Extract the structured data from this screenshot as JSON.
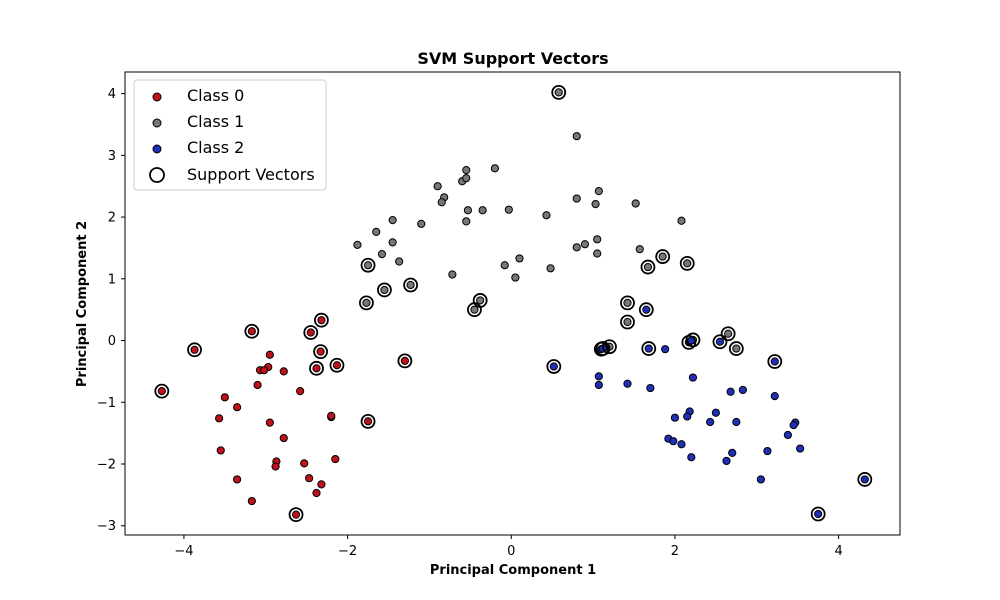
{
  "chart_data": {
    "type": "scatter",
    "title": "SVM Support Vectors",
    "xlabel": "Principal Component 1",
    "ylabel": "Principal Component 2",
    "xlim": [
      -4.72,
      4.75
    ],
    "ylim": [
      -3.15,
      4.35
    ],
    "xticks": [
      -4,
      -2,
      0,
      2,
      4
    ],
    "yticks": [
      -3,
      -2,
      -1,
      0,
      1,
      2,
      3,
      4
    ],
    "grid": false,
    "legend_position": "top-left",
    "series": [
      {
        "name": "Class 0",
        "color": "#c0111a",
        "points": [
          [
            -4.27,
            -0.82
          ],
          [
            -3.87,
            -0.15
          ],
          [
            -3.17,
            0.15
          ],
          [
            -2.32,
            0.33
          ],
          [
            -2.45,
            0.13
          ],
          [
            -2.33,
            -0.18
          ],
          [
            -2.38,
            -0.45
          ],
          [
            -2.13,
            -0.4
          ],
          [
            -1.75,
            -1.31
          ],
          [
            -1.3,
            -0.33
          ],
          [
            -2.63,
            -2.82
          ],
          [
            -2.95,
            -0.23
          ],
          [
            -2.97,
            -0.43
          ],
          [
            -3.07,
            -0.48
          ],
          [
            -3.02,
            -0.48
          ],
          [
            -2.78,
            -0.5
          ],
          [
            -3.1,
            -0.72
          ],
          [
            -3.5,
            -0.92
          ],
          [
            -3.35,
            -1.08
          ],
          [
            -2.58,
            -0.82
          ],
          [
            -3.57,
            -1.26
          ],
          [
            -2.95,
            -1.33
          ],
          [
            -2.2,
            -1.24
          ],
          [
            -2.2,
            -1.22
          ],
          [
            -2.78,
            -1.58
          ],
          [
            -3.55,
            -1.78
          ],
          [
            -2.87,
            -1.96
          ],
          [
            -2.88,
            -2.04
          ],
          [
            -2.53,
            -1.99
          ],
          [
            -2.15,
            -1.92
          ],
          [
            -3.35,
            -2.25
          ],
          [
            -2.47,
            -2.23
          ],
          [
            -2.32,
            -2.33
          ],
          [
            -2.38,
            -2.47
          ],
          [
            -3.17,
            -2.6
          ]
        ]
      },
      {
        "name": "Class 1",
        "color": "#777777",
        "points": [
          [
            0.58,
            4.02
          ],
          [
            0.8,
            3.31
          ],
          [
            -0.55,
            2.76
          ],
          [
            -0.2,
            2.79
          ],
          [
            -0.6,
            2.58
          ],
          [
            -0.55,
            2.63
          ],
          [
            -0.9,
            2.5
          ],
          [
            -0.82,
            2.32
          ],
          [
            -0.85,
            2.24
          ],
          [
            -0.35,
            2.11
          ],
          [
            -0.53,
            2.11
          ],
          [
            -0.03,
            2.12
          ],
          [
            0.43,
            2.03
          ],
          [
            -0.55,
            1.93
          ],
          [
            -1.45,
            1.95
          ],
          [
            -1.1,
            1.89
          ],
          [
            -1.65,
            1.76
          ],
          [
            -1.45,
            1.59
          ],
          [
            -1.88,
            1.55
          ],
          [
            -1.58,
            1.4
          ],
          [
            -1.37,
            1.28
          ],
          [
            0.8,
            2.3
          ],
          [
            1.07,
            2.42
          ],
          [
            1.03,
            2.21
          ],
          [
            1.52,
            2.22
          ],
          [
            2.08,
            1.94
          ],
          [
            1.05,
            1.64
          ],
          [
            0.9,
            1.56
          ],
          [
            0.8,
            1.51
          ],
          [
            1.57,
            1.48
          ],
          [
            1.05,
            1.41
          ],
          [
            0.1,
            1.33
          ],
          [
            -0.08,
            1.22
          ],
          [
            0.48,
            1.17
          ],
          [
            -0.72,
            1.07
          ],
          [
            0.05,
            1.02
          ],
          [
            -1.75,
            1.22
          ],
          [
            -1.55,
            0.82
          ],
          [
            -1.23,
            0.9
          ],
          [
            -1.77,
            0.61
          ],
          [
            -0.38,
            0.65
          ],
          [
            -0.45,
            0.5
          ],
          [
            1.67,
            1.19
          ],
          [
            1.85,
            1.36
          ],
          [
            2.15,
            1.25
          ],
          [
            1.42,
            0.61
          ],
          [
            1.42,
            0.3
          ],
          [
            2.22,
            0.01
          ],
          [
            2.65,
            0.11
          ],
          [
            2.75,
            -0.13
          ],
          [
            1.2,
            -0.1
          ]
        ]
      },
      {
        "name": "Class 2",
        "color": "#1f2fb8",
        "points": [
          [
            1.65,
            0.5
          ],
          [
            1.68,
            -0.13
          ],
          [
            2.17,
            -0.03
          ],
          [
            2.2,
            0.0
          ],
          [
            2.55,
            -0.02
          ],
          [
            3.22,
            -0.34
          ],
          [
            0.52,
            -0.42
          ],
          [
            1.1,
            -0.14
          ],
          [
            1.12,
            -0.13
          ],
          [
            1.88,
            -0.14
          ],
          [
            1.07,
            -0.58
          ],
          [
            1.07,
            -0.72
          ],
          [
            1.42,
            -0.7
          ],
          [
            1.7,
            -0.77
          ],
          [
            2.22,
            -0.6
          ],
          [
            2.83,
            -0.8
          ],
          [
            2.68,
            -0.83
          ],
          [
            3.22,
            -0.9
          ],
          [
            2.18,
            -1.15
          ],
          [
            2.15,
            -1.23
          ],
          [
            2.5,
            -1.17
          ],
          [
            2.0,
            -1.25
          ],
          [
            2.43,
            -1.32
          ],
          [
            2.75,
            -1.32
          ],
          [
            3.47,
            -1.33
          ],
          [
            3.45,
            -1.37
          ],
          [
            1.92,
            -1.59
          ],
          [
            1.98,
            -1.63
          ],
          [
            2.08,
            -1.68
          ],
          [
            2.7,
            -1.82
          ],
          [
            3.13,
            -1.79
          ],
          [
            3.38,
            -1.53
          ],
          [
            3.53,
            -1.75
          ],
          [
            2.2,
            -1.89
          ],
          [
            2.63,
            -1.95
          ],
          [
            3.05,
            -2.25
          ],
          [
            3.75,
            -2.81
          ],
          [
            4.32,
            -2.25
          ]
        ]
      }
    ],
    "support_vectors": {
      "name": "Support Vectors",
      "points": [
        [
          -4.27,
          -0.82
        ],
        [
          -3.87,
          -0.15
        ],
        [
          -3.17,
          0.15
        ],
        [
          -2.32,
          0.33
        ],
        [
          -2.45,
          0.13
        ],
        [
          -2.33,
          -0.18
        ],
        [
          -2.38,
          -0.45
        ],
        [
          -2.13,
          -0.4
        ],
        [
          -1.75,
          -1.31
        ],
        [
          -1.3,
          -0.33
        ],
        [
          -2.63,
          -2.82
        ],
        [
          0.58,
          4.02
        ],
        [
          -1.75,
          1.22
        ],
        [
          -1.55,
          0.82
        ],
        [
          -1.23,
          0.9
        ],
        [
          -1.77,
          0.61
        ],
        [
          -0.38,
          0.65
        ],
        [
          -0.45,
          0.5
        ],
        [
          1.67,
          1.19
        ],
        [
          1.85,
          1.36
        ],
        [
          2.15,
          1.25
        ],
        [
          1.42,
          0.61
        ],
        [
          1.42,
          0.3
        ],
        [
          2.22,
          0.01
        ],
        [
          2.65,
          0.11
        ],
        [
          2.75,
          -0.13
        ],
        [
          1.2,
          -0.1
        ],
        [
          1.65,
          0.5
        ],
        [
          1.68,
          -0.13
        ],
        [
          2.17,
          -0.03
        ],
        [
          2.55,
          -0.02
        ],
        [
          3.22,
          -0.34
        ],
        [
          0.52,
          -0.42
        ],
        [
          1.1,
          -0.14
        ],
        [
          1.12,
          -0.13
        ],
        [
          3.75,
          -2.81
        ],
        [
          4.32,
          -2.25
        ]
      ]
    }
  }
}
